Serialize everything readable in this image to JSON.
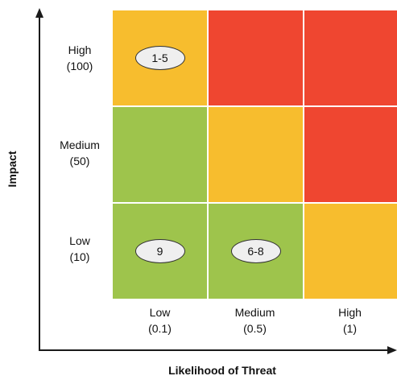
{
  "axes": {
    "y_title": "Impact",
    "x_title": "Likelihood of Threat"
  },
  "rows": [
    {
      "name": "High",
      "value": "(100)"
    },
    {
      "name": "Medium",
      "value": "(50)"
    },
    {
      "name": "Low",
      "value": "(10)"
    }
  ],
  "columns": [
    {
      "name": "Low",
      "value": "(0.1)"
    },
    {
      "name": "Medium",
      "value": "(0.5)"
    },
    {
      "name": "High",
      "value": "(1)"
    }
  ],
  "cells": [
    [
      {
        "risk": "medium",
        "color": "#f7bd2e",
        "marker": "1-5"
      },
      {
        "risk": "high",
        "color": "#ef4630",
        "marker": ""
      },
      {
        "risk": "high",
        "color": "#ef4630",
        "marker": ""
      }
    ],
    [
      {
        "risk": "low",
        "color": "#9ec44c",
        "marker": ""
      },
      {
        "risk": "medium",
        "color": "#f7bd2e",
        "marker": ""
      },
      {
        "risk": "high",
        "color": "#ef4630",
        "marker": ""
      }
    ],
    [
      {
        "risk": "low",
        "color": "#9ec44c",
        "marker": "9"
      },
      {
        "risk": "low",
        "color": "#9ec44c",
        "marker": "6-8"
      },
      {
        "risk": "medium",
        "color": "#f7bd2e",
        "marker": ""
      }
    ]
  ],
  "colors": {
    "high": "#ef4630",
    "medium": "#f7bd2e",
    "low": "#9ec44c"
  }
}
